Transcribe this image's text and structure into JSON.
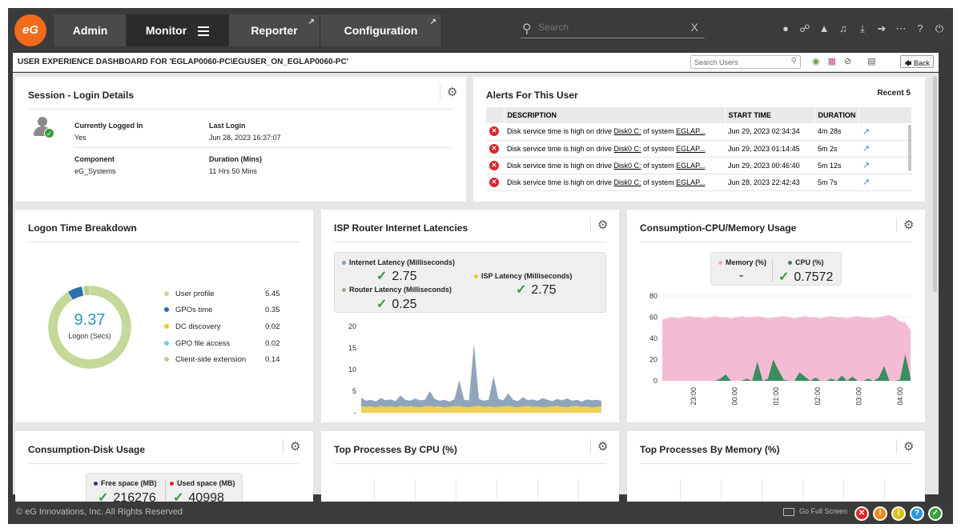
{
  "logo": {
    "text": "eG"
  },
  "nav": {
    "tabs": [
      {
        "label": "Admin"
      },
      {
        "label": "Monitor"
      },
      {
        "label": "Reporter"
      },
      {
        "label": "Configuration"
      }
    ],
    "search_placeholder": "Search",
    "clear_label": "X",
    "icons": [
      "user-icon",
      "link-icon",
      "alarm-icon",
      "bell-icon",
      "download-icon",
      "sign-in-icon",
      "more-icon",
      "help-icon",
      "power-icon"
    ]
  },
  "subheader": {
    "title": "USER EXPERIENCE DASHBOARD FOR 'EGLAP0060-PC\\EGUSER_ON_EGLAP0060-PC'",
    "search_placeholder": "Search Users",
    "back_label": "Back"
  },
  "session": {
    "title": "Session - Login Details",
    "logged_in_label": "Currently Logged In",
    "logged_in_value": "Yes",
    "last_login_label": "Last Login",
    "last_login_value": "Jun 28, 2023 16:37:07",
    "component_label": "Component",
    "component_value": "eG_Systems",
    "duration_label": "Duration (Mins)",
    "duration_value": "11 Hrs 50 Mins"
  },
  "alerts": {
    "title": "Alerts For This User",
    "recent_label": "Recent 5",
    "columns": [
      "DESCRIPTION",
      "START TIME",
      "DURATION"
    ],
    "rows": [
      {
        "desc_pre": "Disk service time is high on drive ",
        "drive": "Disk0 C:",
        "desc_mid": " of system ",
        "system": "EGLAP...",
        "start": "Jun 29, 2023 02:34:34",
        "duration": "4m 28s"
      },
      {
        "desc_pre": "Disk service time is high on drive ",
        "drive": "Disk0 C:",
        "desc_mid": " of system ",
        "system": "EGLAP...",
        "start": "Jun 29, 2023 01:14:45",
        "duration": "5m 2s"
      },
      {
        "desc_pre": "Disk service time is high on drive ",
        "drive": "Disk0 C:",
        "desc_mid": " of system ",
        "system": "EGLAP...",
        "start": "Jun 29, 2023 00:46:40",
        "duration": "5m 12s"
      },
      {
        "desc_pre": "Disk service time is high on drive ",
        "drive": "Disk0 C:",
        "desc_mid": " of system ",
        "system": "EGLAP...",
        "start": "Jun 28, 2023 22:42:43",
        "duration": "5m 7s"
      }
    ]
  },
  "logon": {
    "title": "Logon Time Breakdown",
    "total": "9.37",
    "total_label": "Logon (Secs)",
    "items": [
      {
        "label": "User profile",
        "value": "5.45",
        "color": "#c5d89a"
      },
      {
        "label": "GPOs time",
        "value": "0.35",
        "color": "#2f6fb0"
      },
      {
        "label": "DC discovery",
        "value": "0.02",
        "color": "#f3c623"
      },
      {
        "label": "GPO file access",
        "value": "0.02",
        "color": "#7ec8d8"
      },
      {
        "label": "Client-side extension",
        "value": "0.14",
        "color": "#b7cf8a"
      }
    ]
  },
  "isp": {
    "title": "ISP Router Internet Latencies",
    "metrics": [
      {
        "label": "Internet Latency (Milliseconds)",
        "value": "2.75",
        "color": "#8aa0b8"
      },
      {
        "label": "ISP Latency (Milliseconds)",
        "value": "2.75",
        "color": "#f3c623"
      },
      {
        "label": "Router Latency (Milliseconds)",
        "value": "0.25",
        "color": "#9aa58a"
      }
    ]
  },
  "cpu_mem": {
    "title": "Consumption-CPU/Memory Usage",
    "metrics": [
      {
        "label": "Memory (%)",
        "value": "-",
        "color": "#f2a6c8"
      },
      {
        "label": "CPU (%)",
        "value": "0.7572",
        "color": "#2f8a5a"
      }
    ]
  },
  "disk": {
    "title": "Consumption-Disk Usage",
    "metrics": [
      {
        "label": "Free space (MB)",
        "value": "216276",
        "color": "#2b3a8a"
      },
      {
        "label": "Used space (MB)",
        "value": "40998",
        "color": "#d9262b"
      }
    ]
  },
  "top_cpu": {
    "title": "Top Processes By CPU (%)"
  },
  "top_mem": {
    "title": "Top Processes By Memory (%)"
  },
  "footer": {
    "copyright": "© eG Innovations, Inc. All Rights Reserved",
    "fullscreen_label": "Go Full Screen",
    "status_icons": [
      {
        "name": "critical-icon",
        "glyph": "✕",
        "color": "#d9262b"
      },
      {
        "name": "major-icon",
        "glyph": "!",
        "color": "#f08a1c"
      },
      {
        "name": "minor-icon",
        "glyph": "i",
        "color": "#d8c21a"
      },
      {
        "name": "unknown-icon",
        "glyph": "?",
        "color": "#2a9bd8"
      },
      {
        "name": "normal-icon",
        "glyph": "✓",
        "color": "#3aa33a"
      }
    ]
  },
  "chart_data": [
    {
      "type": "area",
      "title": "ISP Router Internet Latencies",
      "ylim": [
        0,
        20
      ],
      "yticks": [
        "20",
        "15",
        "10",
        "5",
        "-"
      ],
      "series": [
        {
          "name": "Internet Latency (Milliseconds)",
          "color": "#8aa0b8",
          "values": [
            3.5,
            2.8,
            3.0,
            2.6,
            3.4,
            2.9,
            3.1,
            2.7,
            4.0,
            3.0,
            2.8,
            3.3,
            2.9,
            3.0,
            5.0,
            3.2,
            2.8,
            3.0,
            2.6,
            3.1,
            7.5,
            3.0,
            2.9,
            16.0,
            3.2,
            2.8,
            3.0,
            8.5,
            3.2,
            2.9,
            4.5,
            3.0,
            2.7,
            3.6,
            2.9,
            3.1,
            2.8,
            3.4,
            3.0,
            2.7,
            3.2,
            2.9,
            3.3,
            2.8,
            3.0,
            2.6,
            3.1,
            2.9,
            3.0,
            2.8
          ]
        },
        {
          "name": "ISP Latency (Milliseconds)",
          "color": "#f3d250",
          "values": [
            1.6,
            1.4,
            1.5,
            1.3,
            1.6,
            1.4,
            1.5,
            1.3,
            1.6,
            1.4,
            1.5,
            1.4,
            1.3,
            1.5,
            1.6,
            1.4,
            1.5,
            1.3,
            1.4,
            1.5,
            1.6,
            1.4,
            1.3,
            1.5,
            1.6,
            1.4,
            1.5,
            1.3,
            1.4,
            1.5,
            1.6,
            1.4,
            1.3,
            1.5,
            1.6,
            1.4,
            1.5,
            1.3,
            1.4,
            1.5,
            1.6,
            1.4,
            1.3,
            1.5,
            1.6,
            1.4,
            1.5,
            1.3,
            1.4,
            1.5
          ]
        }
      ]
    },
    {
      "type": "area",
      "title": "Consumption-CPU/Memory Usage",
      "ylim": [
        0,
        80
      ],
      "yticks": [
        "80",
        "60",
        "40",
        "20",
        "0"
      ],
      "xticks": [
        "23:00",
        "00:00",
        "01:00",
        "02:00",
        "03:00",
        "04:00"
      ],
      "series": [
        {
          "name": "Memory (%)",
          "color": "#f2b8d2",
          "values": [
            58,
            59,
            60,
            59,
            60,
            61,
            60,
            60,
            59,
            60,
            61,
            60,
            60,
            59,
            60,
            61,
            60,
            60,
            61,
            60,
            59,
            60,
            60,
            61,
            60,
            59,
            60,
            61,
            60,
            60,
            59,
            60,
            61,
            60,
            60,
            59,
            60,
            61,
            60,
            60,
            59,
            60,
            61,
            62,
            60,
            56,
            55,
            48
          ]
        },
        {
          "name": "CPU (%)",
          "color": "#2f8a5a",
          "values": [
            0,
            0,
            0,
            0,
            0,
            0,
            0,
            0,
            0,
            0,
            0,
            2,
            6,
            0,
            0,
            0,
            2,
            0,
            18,
            0,
            2,
            20,
            10,
            1,
            0,
            0,
            8,
            4,
            0,
            3,
            0,
            0,
            2,
            0,
            5,
            0,
            4,
            0,
            0,
            2,
            0,
            3,
            14,
            0,
            0,
            1,
            25,
            3
          ]
        }
      ]
    }
  ]
}
